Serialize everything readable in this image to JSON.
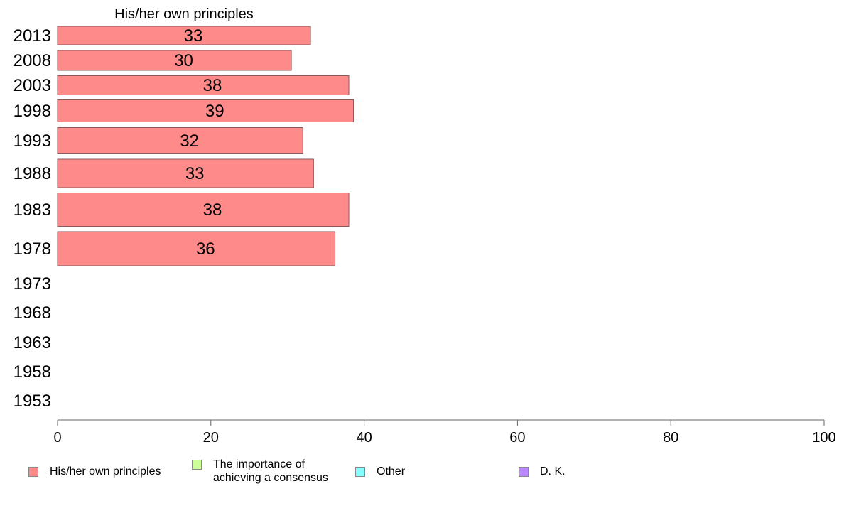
{
  "chart_data": {
    "type": "bar",
    "orientation": "horizontal",
    "title": "His/her own principles",
    "categories": [
      "2013",
      "2008",
      "2003",
      "1998",
      "1993",
      "1988",
      "1983",
      "1978",
      "1973",
      "1968",
      "1963",
      "1958",
      "1953"
    ],
    "series": [
      {
        "name": "His/her own principles",
        "color": "#ff8a8a",
        "values": [
          33,
          30.5,
          38,
          38.6,
          32,
          33.4,
          38,
          36.2,
          null,
          null,
          null,
          null,
          null
        ],
        "labels": [
          "33",
          "30",
          "38",
          "39",
          "32",
          "33",
          "38",
          "36",
          "",
          "",
          "",
          "",
          ""
        ]
      }
    ],
    "xlim": [
      0,
      100
    ],
    "xticks": [
      "0",
      "20",
      "40",
      "60",
      "80",
      "100"
    ],
    "legend_position": "bottom",
    "legend": [
      {
        "name": "His/her own principles",
        "color": "#ff8a8a"
      },
      {
        "name": "The importance of\nachieving a consensus",
        "color": "#ccff99"
      },
      {
        "name": "Other",
        "color": "#88ffff"
      },
      {
        "name": "D. K.",
        "color": "#bb88ff"
      }
    ]
  }
}
